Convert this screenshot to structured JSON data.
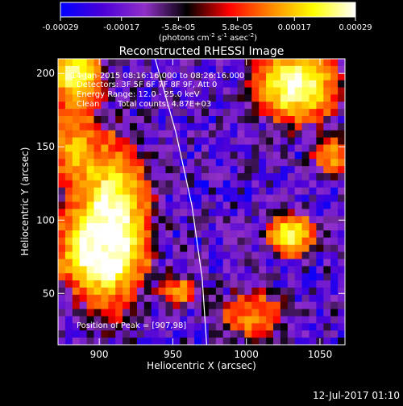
{
  "colorbar": {
    "ticks": [
      {
        "value": -0.00029,
        "label": "-0.00029"
      },
      {
        "value": -0.00017,
        "label": "-0.00017"
      },
      {
        "value": -5.8e-05,
        "label": "-5.8e-05"
      },
      {
        "value": 5.8e-05,
        "label": "5.8e-05"
      },
      {
        "value": 0.00017,
        "label": "0.00017"
      },
      {
        "value": 0.00029,
        "label": "0.00029"
      }
    ],
    "range": [
      -0.00029,
      0.00029
    ],
    "colors": [
      "#0000ff",
      "#4b00d8",
      "#9030c8",
      "#000000",
      "#ff0000",
      "#ff8800",
      "#ffff00",
      "#ffffff"
    ],
    "unit_prefix": "(photons cm",
    "unit_sup1": "-2",
    "unit_mid": " s",
    "unit_sup2": "-1",
    "unit_mid2": " asec",
    "unit_sup3": "-2",
    "unit_suffix": ")"
  },
  "chart_data": {
    "type": "heatmap",
    "title": "Reconstructed RHESSI Image",
    "xlabel": "Heliocentric X (arcsec)",
    "ylabel": "Heliocentric Y (arcsec)",
    "xlim": [
      872,
      1067
    ],
    "ylim": [
      15,
      210
    ],
    "xticks": [
      {
        "value": 900,
        "label": "900"
      },
      {
        "value": 950,
        "label": "950"
      },
      {
        "value": 1000,
        "label": "1000"
      },
      {
        "value": 1050,
        "label": "1050"
      }
    ],
    "yticks": [
      {
        "value": 50,
        "label": "50"
      },
      {
        "value": 100,
        "label": "100"
      },
      {
        "value": 150,
        "label": "150"
      },
      {
        "value": 200,
        "label": "200"
      }
    ],
    "annotations": {
      "time": "14-Jan-2015 08:16:16.000 to 08:26:16.000",
      "detectors": "Detectors: 3F 5F 6F 7F 8F 9F, Att 0",
      "energy": "Energy Range: 12.0 - 25.0 keV",
      "algorithm": "Clean",
      "counts": "Total counts: 4.87E+03",
      "peak": "Position of Peak = [907,98]"
    },
    "peak": [
      907,
      98
    ],
    "limb_points": [
      [
        938,
        210
      ],
      [
        952,
        160
      ],
      [
        963,
        110
      ],
      [
        970,
        60
      ],
      [
        973,
        15
      ]
    ],
    "sources": [
      {
        "x": 907,
        "y": 98,
        "sx": 14,
        "sy": 30,
        "amp": 1.0
      },
      {
        "x": 898,
        "y": 78,
        "sx": 16,
        "sy": 14,
        "amp": 0.7
      },
      {
        "x": 884,
        "y": 198,
        "sx": 10,
        "sy": 12,
        "amp": 0.8
      },
      {
        "x": 883,
        "y": 150,
        "sx": 8,
        "sy": 14,
        "amp": 0.45
      },
      {
        "x": 1034,
        "y": 192,
        "sx": 15,
        "sy": 14,
        "amp": 0.95
      },
      {
        "x": 1030,
        "y": 90,
        "sx": 9,
        "sy": 8,
        "amp": 0.75
      },
      {
        "x": 1058,
        "y": 143,
        "sx": 7,
        "sy": 8,
        "amp": 0.4
      },
      {
        "x": 955,
        "y": 52,
        "sx": 8,
        "sy": 6,
        "amp": 0.35
      },
      {
        "x": 1005,
        "y": 35,
        "sx": 14,
        "sy": 10,
        "amp": 0.3
      }
    ]
  },
  "footer": {
    "date": "12-Jul-2017 01:10"
  }
}
